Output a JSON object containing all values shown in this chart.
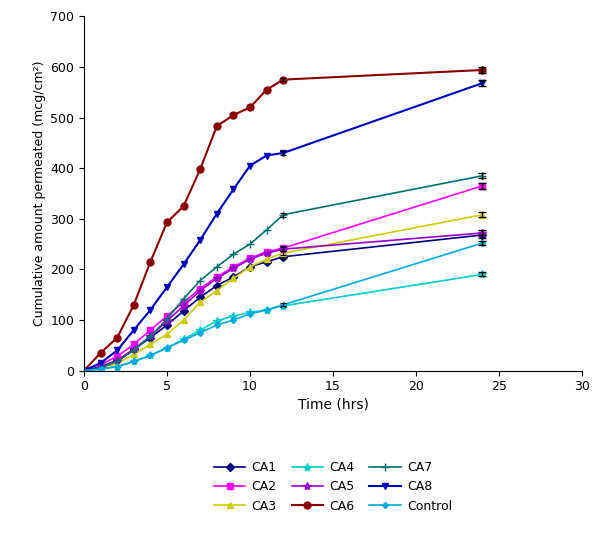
{
  "title": "",
  "xlabel": "Time (hrs)",
  "ylabel": "Cumulative amount permeated (mcg/cm²)",
  "xlim": [
    0,
    30
  ],
  "ylim": [
    0,
    700
  ],
  "xticks": [
    0,
    5,
    10,
    15,
    20,
    25,
    30
  ],
  "yticks": [
    0,
    100,
    200,
    300,
    400,
    500,
    600,
    700
  ],
  "series": [
    {
      "label": "CA1",
      "color": "#000080",
      "marker": "D",
      "markersize": 4,
      "linewidth": 1.2,
      "x": [
        0,
        1,
        2,
        3,
        4,
        5,
        6,
        7,
        8,
        9,
        10,
        11,
        12,
        24
      ],
      "y": [
        0,
        8,
        20,
        42,
        65,
        90,
        118,
        145,
        168,
        185,
        205,
        215,
        225,
        268
      ],
      "yerr_last": 5
    },
    {
      "label": "CA2",
      "color": "#FF00FF",
      "marker": "s",
      "markersize": 4,
      "linewidth": 1.2,
      "x": [
        0,
        1,
        2,
        3,
        4,
        5,
        6,
        7,
        8,
        9,
        10,
        11,
        12,
        24
      ],
      "y": [
        0,
        12,
        28,
        52,
        80,
        108,
        135,
        162,
        185,
        205,
        222,
        235,
        242,
        365
      ],
      "yerr_last": 6
    },
    {
      "label": "CA3",
      "color": "#CCCC00",
      "marker": "^",
      "markersize": 4,
      "linewidth": 1.2,
      "x": [
        0,
        1,
        2,
        3,
        4,
        5,
        6,
        7,
        8,
        9,
        10,
        11,
        12,
        24
      ],
      "y": [
        0,
        5,
        14,
        32,
        52,
        72,
        100,
        135,
        158,
        182,
        205,
        220,
        232,
        308
      ],
      "yerr_last": 5
    },
    {
      "label": "CA4",
      "color": "#00CCCC",
      "marker": "*",
      "markersize": 6,
      "linewidth": 1.2,
      "x": [
        0,
        1,
        2,
        3,
        4,
        5,
        6,
        7,
        8,
        9,
        10,
        11,
        12,
        24
      ],
      "y": [
        0,
        3,
        8,
        18,
        30,
        45,
        62,
        80,
        98,
        108,
        115,
        120,
        128,
        190
      ],
      "yerr_last": 4
    },
    {
      "label": "CA5",
      "color": "#9900CC",
      "marker": "*",
      "markersize": 6,
      "linewidth": 1.2,
      "x": [
        0,
        1,
        2,
        3,
        4,
        5,
        6,
        7,
        8,
        9,
        10,
        11,
        12,
        24
      ],
      "y": [
        0,
        7,
        20,
        42,
        68,
        98,
        128,
        158,
        182,
        202,
        220,
        232,
        240,
        272
      ],
      "yerr_last": 5
    },
    {
      "label": "CA6",
      "color": "#8B0000",
      "marker": "o",
      "markersize": 5,
      "linewidth": 1.5,
      "x": [
        0,
        1,
        2,
        3,
        4,
        5,
        6,
        7,
        8,
        9,
        10,
        11,
        12,
        24
      ],
      "y": [
        0,
        35,
        65,
        130,
        215,
        293,
        325,
        398,
        483,
        505,
        520,
        555,
        575,
        594
      ],
      "yerr_last": 5
    },
    {
      "label": "CA7",
      "color": "#007070",
      "marker": "+",
      "markersize": 6,
      "linewidth": 1.2,
      "x": [
        0,
        1,
        2,
        3,
        4,
        5,
        6,
        7,
        8,
        9,
        10,
        11,
        12,
        24
      ],
      "y": [
        0,
        6,
        18,
        40,
        68,
        102,
        142,
        178,
        205,
        230,
        250,
        278,
        308,
        385
      ],
      "yerr_last": 5
    },
    {
      "label": "CA8",
      "color": "#0000BB",
      "marker": "v",
      "markersize": 4,
      "linewidth": 1.5,
      "x": [
        0,
        1,
        2,
        3,
        4,
        5,
        6,
        7,
        8,
        9,
        10,
        11,
        12,
        24
      ],
      "y": [
        0,
        15,
        40,
        80,
        120,
        165,
        210,
        258,
        310,
        358,
        405,
        425,
        430,
        568
      ],
      "yerr_last": 6
    },
    {
      "label": "Control",
      "color": "#00AADD",
      "marker": "D",
      "markersize": 3,
      "linewidth": 1.2,
      "x": [
        0,
        1,
        2,
        3,
        4,
        5,
        6,
        7,
        8,
        9,
        10,
        11,
        12,
        24
      ],
      "y": [
        0,
        3,
        8,
        18,
        30,
        45,
        60,
        75,
        90,
        100,
        112,
        120,
        130,
        252
      ],
      "yerr_last": 4
    }
  ],
  "legend_ncol": 3,
  "figsize": [
    6.0,
    5.45
  ],
  "dpi": 100
}
